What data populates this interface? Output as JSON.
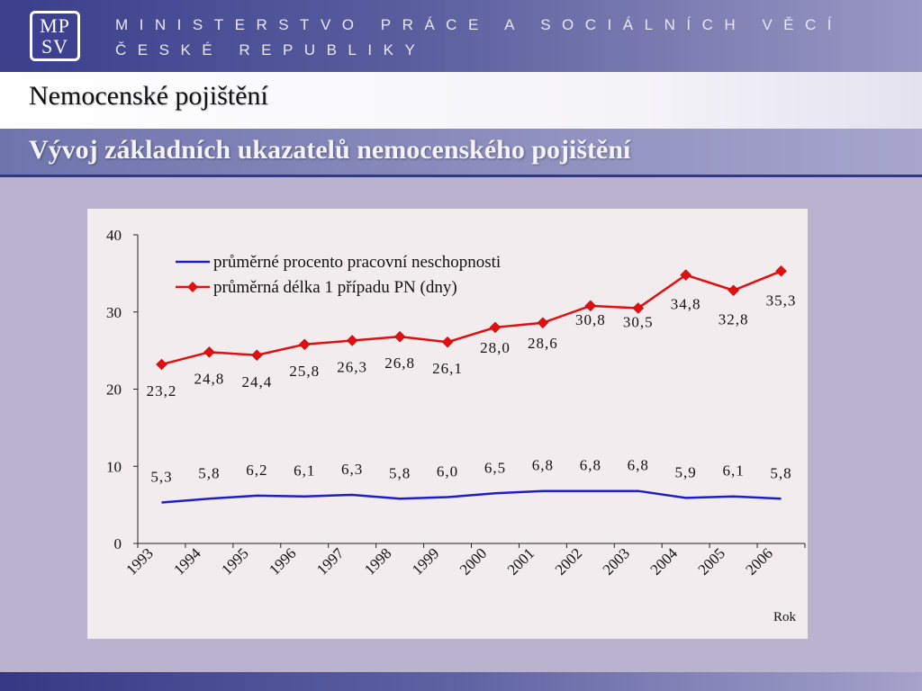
{
  "header": {
    "logo_top": "MP",
    "logo_bottom": "SV",
    "ministry_line1": "MINISTERSTVO PRÁCE A SOCIÁLNÍCH VĚCÍ",
    "ministry_line2": "ČESKÉ REPUBLIKY"
  },
  "title": "Nemocenské pojištění",
  "subtitle": "Vývoj základních ukazatelů nemocenského pojištění",
  "colors": {
    "series1": "#1e1ec8",
    "series2": "#e01010"
  },
  "chart_data": {
    "type": "line",
    "title": "",
    "xlabel": "Rok",
    "ylabel": "",
    "ylim": [
      0,
      40
    ],
    "yticks": [
      0,
      10,
      20,
      30,
      40
    ],
    "x": [
      "1993",
      "1994",
      "1995",
      "1996",
      "1997",
      "1998",
      "1999",
      "2000",
      "2001",
      "2002",
      "2003",
      "2004",
      "2005",
      "2006"
    ],
    "legend_position": "top-left",
    "grid": false,
    "series": [
      {
        "name": "průměrné procento pracovní neschopnosti",
        "marker": "none",
        "values": [
          5.3,
          5.8,
          6.2,
          6.1,
          6.3,
          5.8,
          6.0,
          6.5,
          6.8,
          6.8,
          6.8,
          5.9,
          6.1,
          5.8
        ],
        "labels": [
          "5,3",
          "5,8",
          "6,2",
          "6,1",
          "6,3",
          "5,8",
          "6,0",
          "6,5",
          "6,8",
          "6,8",
          "6,8",
          "5,9",
          "6,1",
          "5,8"
        ]
      },
      {
        "name": "průměrná délka 1 případu PN (dny)",
        "marker": "diamond",
        "values": [
          23.2,
          24.8,
          24.4,
          25.8,
          26.3,
          26.8,
          26.1,
          28.0,
          28.6,
          30.8,
          30.5,
          34.8,
          32.8,
          35.3
        ],
        "labels": [
          "23,2",
          "24,8",
          "24,4",
          "25,8",
          "26,3",
          "26,8",
          "26,1",
          "28,0",
          "28,6",
          "30,8",
          "30,5",
          "34,8",
          "32,8",
          "35,3"
        ]
      }
    ]
  }
}
